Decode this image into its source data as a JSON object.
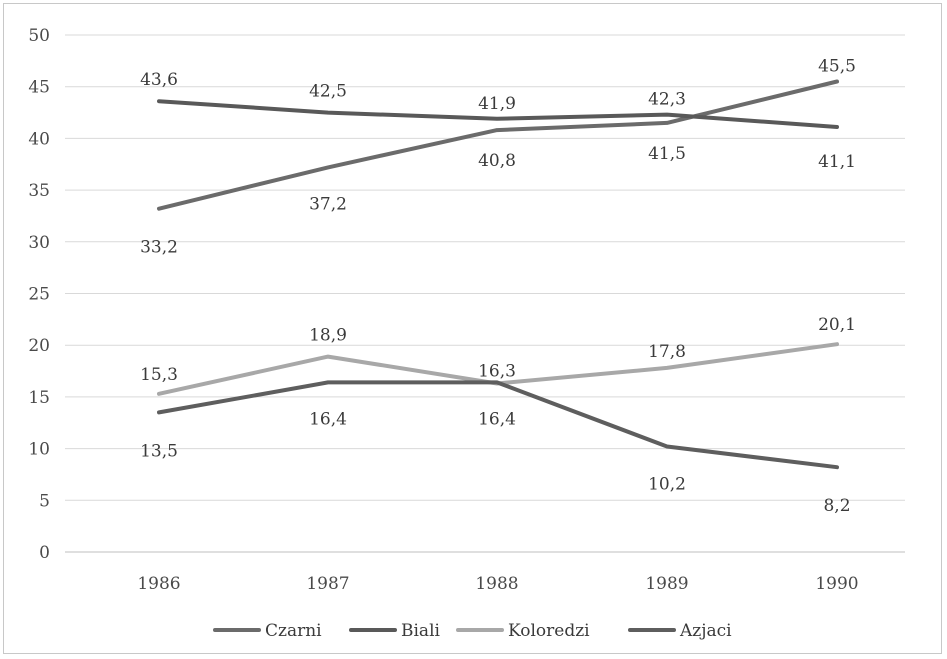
{
  "chart_data": {
    "type": "line",
    "title": "",
    "xlabel": "",
    "ylabel": "",
    "x": [
      "1986",
      "1987",
      "1988",
      "1989",
      "1990"
    ],
    "ylim": [
      0,
      50
    ],
    "yticks": [
      "0",
      "5",
      "10",
      "15",
      "20",
      "25",
      "30",
      "35",
      "40",
      "45",
      "50"
    ],
    "grid": true,
    "legend_position": "bottom",
    "series": [
      {
        "name": "Czarni",
        "color": "#6b6b6b",
        "values": [
          33.2,
          37.2,
          40.8,
          41.5,
          45.5
        ],
        "labels": [
          "33,2",
          "37,2",
          "40,8",
          "41,5",
          "45,5"
        ]
      },
      {
        "name": "Biali",
        "color": "#595959",
        "values": [
          43.6,
          42.5,
          41.9,
          42.3,
          41.1
        ],
        "labels": [
          "43,6",
          "42,5",
          "41,9",
          "42,3",
          "41,1"
        ]
      },
      {
        "name": "Koloredzi",
        "color": "#a8a8a8",
        "values": [
          15.3,
          18.9,
          16.3,
          17.8,
          20.1
        ],
        "labels": [
          "15,3",
          "18,9",
          "16,3",
          "17,8",
          "20,1"
        ]
      },
      {
        "name": "Azjaci",
        "color": "#5e5e5e",
        "values": [
          13.5,
          16.4,
          16.4,
          10.2,
          8.2
        ],
        "labels": [
          "13,5",
          "16,4",
          "16,4",
          "10,2",
          "8,2"
        ]
      }
    ]
  }
}
